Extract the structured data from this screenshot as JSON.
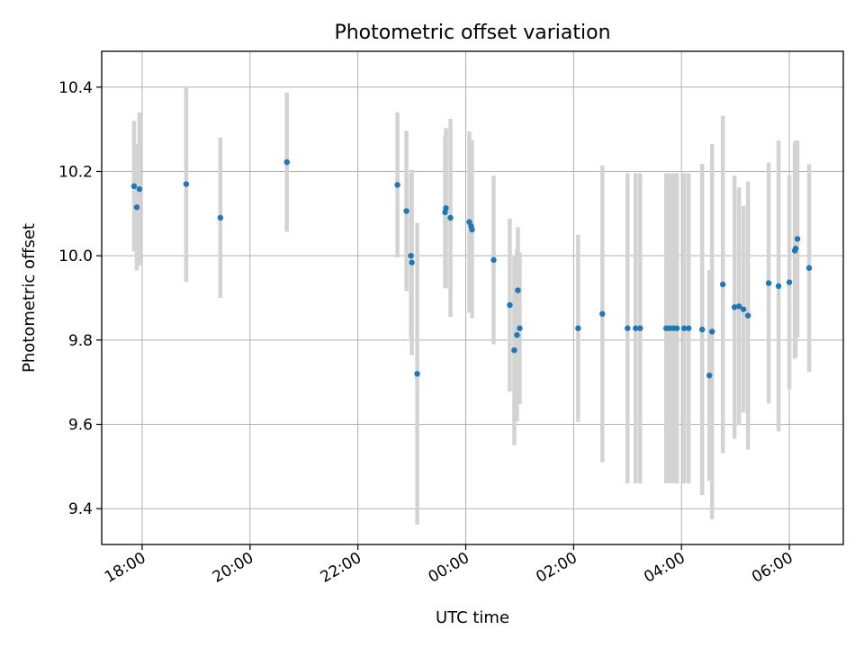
{
  "chart_data": {
    "type": "scatter",
    "title": "Photometric offset variation",
    "xlabel": "UTC time",
    "ylabel": "Photometric offset",
    "x_unit": "hours",
    "xlim": [
      "17:15",
      "07:00 (+1 day)"
    ],
    "ylim": [
      9.315,
      10.485
    ],
    "yticks": [
      9.4,
      9.6,
      9.8,
      10.0,
      10.2,
      10.4
    ],
    "ytick_labels": [
      "9.4",
      "9.6",
      "9.8",
      "10.0",
      "10.2",
      "10.4"
    ],
    "xtick_labels": [
      "18:00",
      "20:00",
      "22:00",
      "00:00",
      "02:00",
      "04:00",
      "06:00"
    ],
    "grid": true,
    "colors": {
      "points": "#1f77b4",
      "errorbars": "#d3d3d3",
      "grid": "#b0b0b0"
    },
    "series": [
      {
        "name": "",
        "x_times": [
          "17:51",
          "17:54",
          "17:57",
          "18:49",
          "19:27",
          "20:41",
          "22:44",
          "22:54",
          "22:59",
          "23:00",
          "23:06",
          "23:37",
          "23:38",
          "23:43",
          "24:04",
          "24:06",
          "24:07",
          "24:31",
          "24:49",
          "24:54",
          "24:57",
          "24:58",
          "25:00",
          "26:05",
          "26:32",
          "27:00",
          "27:09",
          "27:14",
          "27:43",
          "27:47",
          "27:51",
          "27:55",
          "28:03",
          "28:08",
          "28:23",
          "28:31",
          "28:34",
          "28:46",
          "28:59",
          "29:04",
          "29:09",
          "29:14",
          "29:37",
          "29:48",
          "30:00",
          "30:06",
          "30:07",
          "30:09",
          "30:22"
        ],
        "y": [
          10.165,
          10.115,
          10.158,
          10.17,
          10.09,
          10.222,
          10.168,
          10.106,
          10.0,
          9.984,
          9.72,
          10.103,
          10.113,
          10.09,
          10.08,
          10.07,
          10.062,
          9.99,
          9.883,
          9.776,
          9.812,
          9.918,
          9.828,
          9.828,
          9.862,
          9.828,
          9.828,
          9.828,
          9.828,
          9.828,
          9.828,
          9.828,
          9.828,
          9.828,
          9.825,
          9.716,
          9.82,
          9.932,
          9.878,
          9.88,
          9.873,
          9.858,
          9.935,
          9.928,
          9.937,
          10.012,
          10.017,
          10.04,
          9.971
        ],
        "yerr": [
          0.155,
          0.15,
          0.182,
          0.232,
          0.19,
          0.165,
          0.172,
          0.19,
          0.195,
          0.22,
          0.358,
          0.18,
          0.19,
          0.235,
          0.215,
          0.205,
          0.21,
          0.2,
          0.205,
          0.225,
          0.205,
          0.15,
          0.18,
          0.222,
          0.352,
          0.368,
          0.368,
          0.368,
          0.368,
          0.368,
          0.368,
          0.368,
          0.368,
          0.368,
          0.393,
          0.25,
          0.445,
          0.4,
          0.312,
          0.282,
          0.245,
          0.318,
          0.286,
          0.345,
          0.254,
          0.256,
          0.256,
          0.234,
          0.246
        ]
      }
    ]
  }
}
